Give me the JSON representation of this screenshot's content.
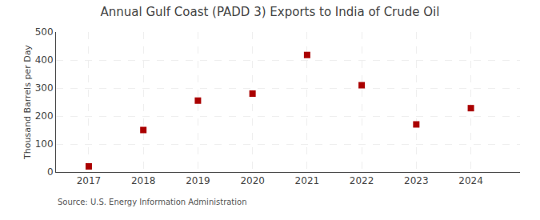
{
  "chart_data": {
    "type": "scatter",
    "title": "Annual Gulf Coast (PADD 3) Exports to India of Crude Oil",
    "ylabel": "Thousand Barrels per Day",
    "annotations": [
      "Source: U.S. Energy Information Administration"
    ],
    "x": [
      2017,
      2018,
      2019,
      2020,
      2021,
      2022,
      2023,
      2024
    ],
    "values": [
      20,
      150,
      255,
      280,
      418,
      310,
      170,
      228
    ],
    "color": "#aa0000",
    "marker": "square",
    "xlim": [
      2016.4,
      2024.9
    ],
    "xticks": [
      2017,
      2018,
      2019,
      2020,
      2021,
      2022,
      2023,
      2024
    ],
    "ylim": [
      0,
      500
    ],
    "yticks": [
      0,
      100,
      200,
      300,
      400,
      500
    ],
    "grid": true
  }
}
